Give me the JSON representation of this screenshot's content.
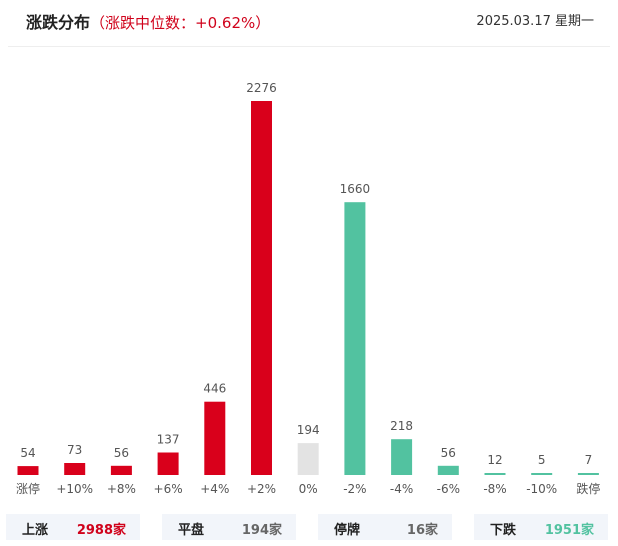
{
  "header": {
    "title": "涨跌分布",
    "subtitle": "（涨跌中位数：+0.62%）",
    "date": "2025.03.17 星期一"
  },
  "colors": {
    "up": "#d9001b",
    "down": "#52c2a0",
    "flat": "#e3e3e3"
  },
  "chart_data": {
    "type": "bar",
    "title": "涨跌分布",
    "xlabel": "",
    "ylabel": "",
    "grid": false,
    "categories": [
      "涨停",
      "+10%",
      "+8%",
      "+6%",
      "+4%",
      "+2%",
      "0%",
      "-2%",
      "-4%",
      "-6%",
      "-8%",
      "-10%",
      "跌停"
    ],
    "values": [
      54,
      73,
      56,
      137,
      446,
      2276,
      194,
      1660,
      218,
      56,
      12,
      5,
      7
    ],
    "bar_colors": [
      "up",
      "up",
      "up",
      "up",
      "up",
      "up",
      "flat",
      "down",
      "down",
      "down",
      "down",
      "down",
      "down"
    ],
    "ylim": [
      0,
      2276
    ]
  },
  "summary": [
    {
      "label": "上涨",
      "value": "2988家",
      "color": "#d0021b"
    },
    {
      "label": "平盘",
      "value": "194家",
      "color": "#666666"
    },
    {
      "label": "停牌",
      "value": "16家",
      "color": "#666666"
    },
    {
      "label": "下跌",
      "value": "1951家",
      "color": "#52c2a0"
    }
  ]
}
